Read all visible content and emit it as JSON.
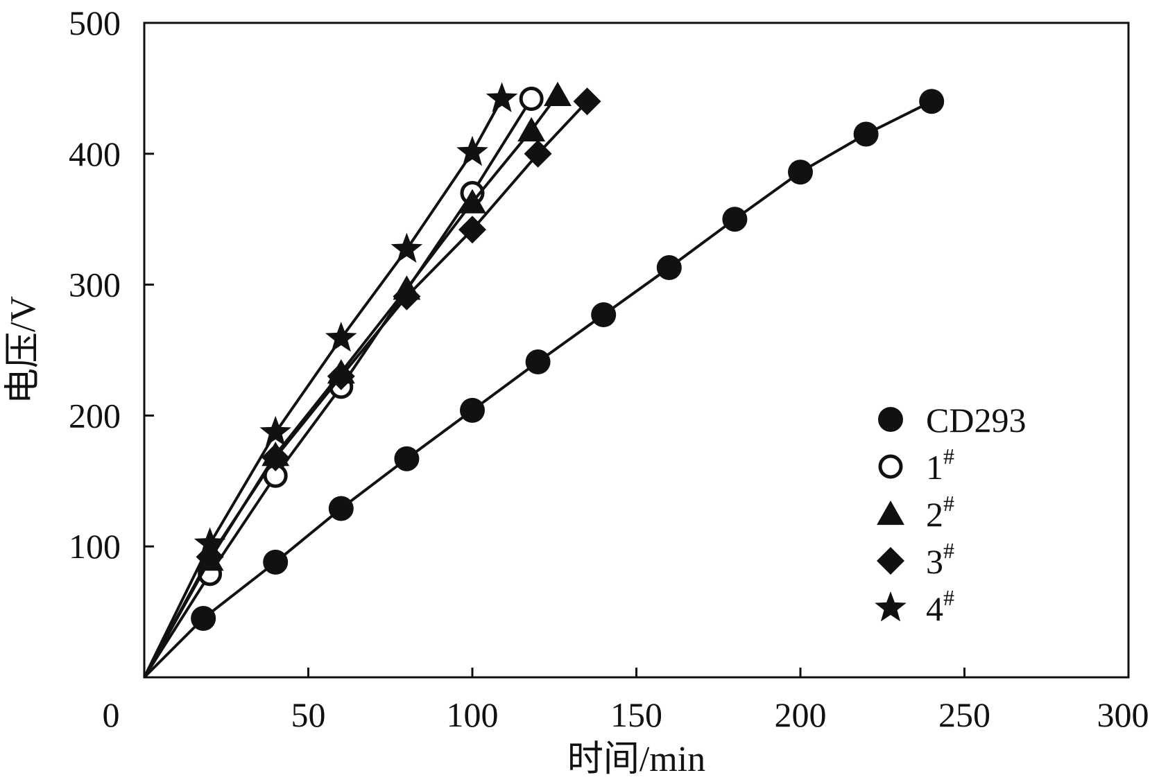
{
  "chart_data": {
    "type": "line",
    "title": "",
    "xlabel": "时间/min",
    "ylabel": "电压/V",
    "xlim": [
      0,
      300
    ],
    "ylim": [
      0,
      500
    ],
    "xticks": [
      0,
      50,
      100,
      150,
      200,
      250,
      300
    ],
    "yticks": [
      100,
      200,
      300,
      400,
      500
    ],
    "grid": false,
    "legend_position": "lower-right",
    "series": [
      {
        "name": "CD293",
        "marker": "filled-circle",
        "x": [
          0,
          18,
          40,
          60,
          80,
          100,
          120,
          140,
          160,
          180,
          200,
          220,
          240
        ],
        "y": [
          0,
          45,
          88,
          129,
          167,
          204,
          241,
          277,
          313,
          350,
          386,
          415,
          440
        ]
      },
      {
        "name": "1",
        "marker": "open-circle",
        "x": [
          0,
          20,
          40,
          60,
          100,
          118
        ],
        "y": [
          0,
          79,
          154,
          222,
          370,
          442
        ]
      },
      {
        "name": "2",
        "marker": "triangle",
        "x": [
          0,
          20,
          40,
          60,
          80,
          100,
          118,
          126
        ],
        "y": [
          0,
          90,
          170,
          233,
          297,
          363,
          418,
          445
        ]
      },
      {
        "name": "3",
        "marker": "diamond",
        "x": [
          0,
          20,
          40,
          60,
          80,
          100,
          120,
          135
        ],
        "y": [
          0,
          92,
          168,
          230,
          291,
          342,
          400,
          440
        ]
      },
      {
        "name": "4",
        "marker": "star",
        "x": [
          0,
          20,
          40,
          60,
          80,
          100,
          109
        ],
        "y": [
          0,
          102,
          187,
          259,
          327,
          401,
          442
        ]
      }
    ],
    "legend_sup": "#"
  }
}
